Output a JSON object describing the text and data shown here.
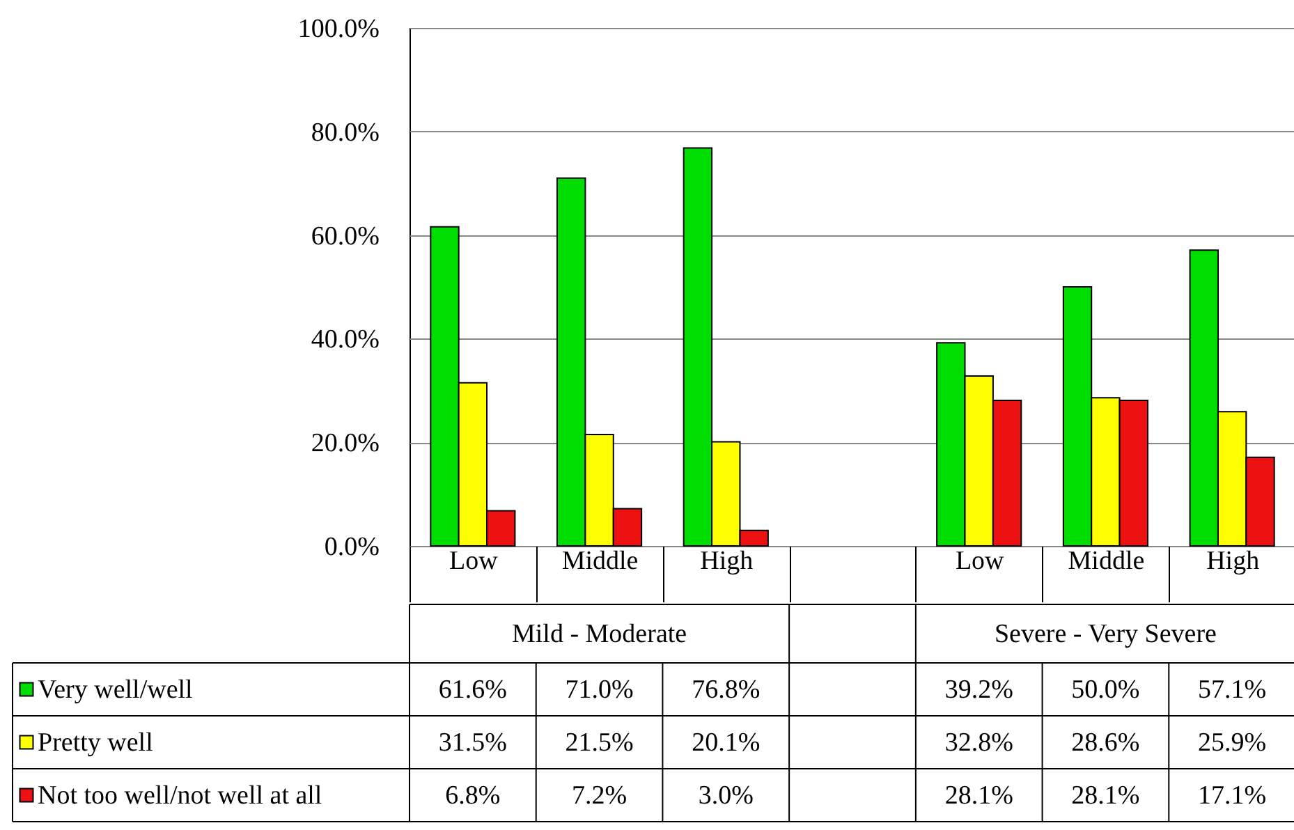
{
  "chart_data": {
    "type": "bar",
    "categories": [
      "Low",
      "Middle",
      "High",
      null,
      "Low",
      "Middle",
      "High"
    ],
    "annotations": [
      "Mild - Moderate",
      "Severe - Very Severe"
    ],
    "ylim": [
      0,
      100
    ],
    "yticks": [
      {
        "value": 0,
        "label": "0.0%"
      },
      {
        "value": 20,
        "label": "20.0%"
      },
      {
        "value": 40,
        "label": "40.0%"
      },
      {
        "value": 60,
        "label": "60.0%"
      },
      {
        "value": 80,
        "label": "80.0%"
      },
      {
        "value": 100,
        "label": "100.0%"
      }
    ],
    "grid": "y",
    "legend": "bottom",
    "series": [
      {
        "name": "Very well/well",
        "color": "#00dd00",
        "values": [
          61.6,
          71.0,
          76.8,
          null,
          39.2,
          50.0,
          57.1
        ],
        "value_labels": [
          "61.6%",
          "71.0%",
          "76.8%",
          null,
          "39.2%",
          "50.0%",
          "57.1%"
        ]
      },
      {
        "name": "Pretty well",
        "color": "#ffff00",
        "values": [
          31.5,
          21.5,
          20.1,
          null,
          32.8,
          28.6,
          25.9
        ],
        "value_labels": [
          "31.5%",
          "21.5%",
          "20.1%",
          null,
          "32.8%",
          "28.6%",
          "25.9%"
        ]
      },
      {
        "name": "Not too well/not well at all",
        "color": "#ee1111",
        "values": [
          6.8,
          7.2,
          3.0,
          null,
          28.1,
          28.1,
          17.1
        ],
        "value_labels": [
          "6.8%",
          "7.2%",
          "3.0%",
          null,
          "28.1%",
          "28.1%",
          "17.1%"
        ]
      }
    ]
  }
}
